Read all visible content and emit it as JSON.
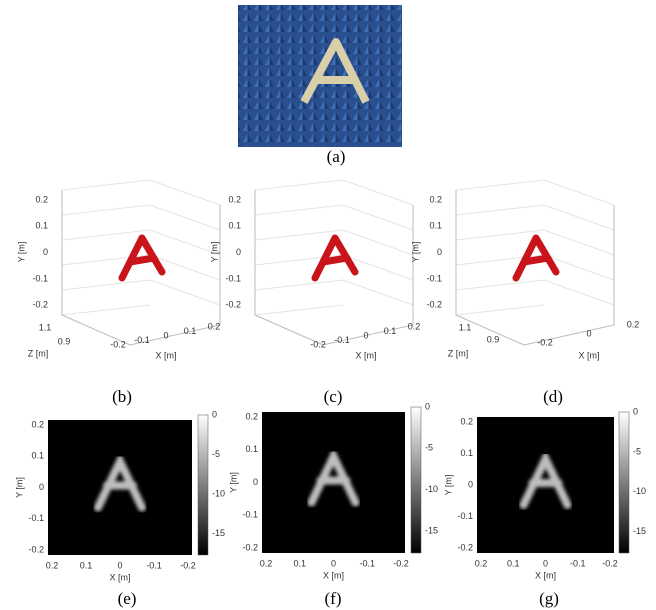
{
  "photo": {
    "caption": "(a)"
  },
  "plots3d": [
    {
      "caption": "(b)",
      "y_label": "Y [m]",
      "x_label": "X [m]",
      "z_label": "Z [m]",
      "y_ticks": [
        "0.2",
        "0.1",
        "0",
        "-0.1",
        "-0.2"
      ],
      "x_ticks": [
        "-0.2",
        "-0.1",
        "0",
        "0.1",
        "0.2"
      ],
      "z_ticks": [
        "1.1",
        "0.9"
      ]
    },
    {
      "caption": "(c)",
      "y_label": "Y [m]",
      "x_label": "X [m]",
      "y_ticks": [
        "0.2",
        "0.1",
        "0",
        "-0.1",
        "-0.2"
      ],
      "x_ticks": [
        "-0.2",
        "-0.1",
        "0",
        "0.1",
        "0.2"
      ]
    },
    {
      "caption": "(d)",
      "y_label": "Y [m]",
      "x_label": "X [m]",
      "z_label": "Z [m]",
      "y_ticks": [
        "0.2",
        "0.1",
        "0",
        "-0.1",
        "-0.2"
      ],
      "x_ticks": [
        "-0.2",
        "0",
        "0.2"
      ],
      "z_ticks": [
        "1.1",
        "0.9"
      ]
    }
  ],
  "images": [
    {
      "caption": "(e)",
      "y_label": "Y [m]",
      "x_label": "X [m]",
      "y_ticks": [
        "0.2",
        "0.1",
        "0",
        "-0.1",
        "-0.2"
      ],
      "x_ticks": [
        "0.2",
        "0.1",
        "0",
        "-0.1",
        "-0.2"
      ],
      "colorbar_ticks": [
        "0",
        "-5",
        "-10",
        "-15"
      ]
    },
    {
      "caption": "(f)",
      "y_label": "Y [m]",
      "x_label": "X [m]",
      "y_ticks": [
        "0.2",
        "0.1",
        "0",
        "-0.1",
        "-0.2"
      ],
      "x_ticks": [
        "0.2",
        "0.1",
        "0",
        "-0.1",
        "-0.2"
      ],
      "colorbar_ticks": [
        "0",
        "-5",
        "-10",
        "-15"
      ]
    },
    {
      "caption": "(g)",
      "y_label": "Y [m]",
      "x_label": "X [m]",
      "y_ticks": [
        "0.2",
        "0.1",
        "0",
        "-0.1",
        "-0.2"
      ],
      "x_ticks": [
        "0.2",
        "0.1",
        "0",
        "-0.1",
        "-0.2"
      ],
      "colorbar_ticks": [
        "0",
        "-5",
        "-10",
        "-15"
      ]
    }
  ]
}
